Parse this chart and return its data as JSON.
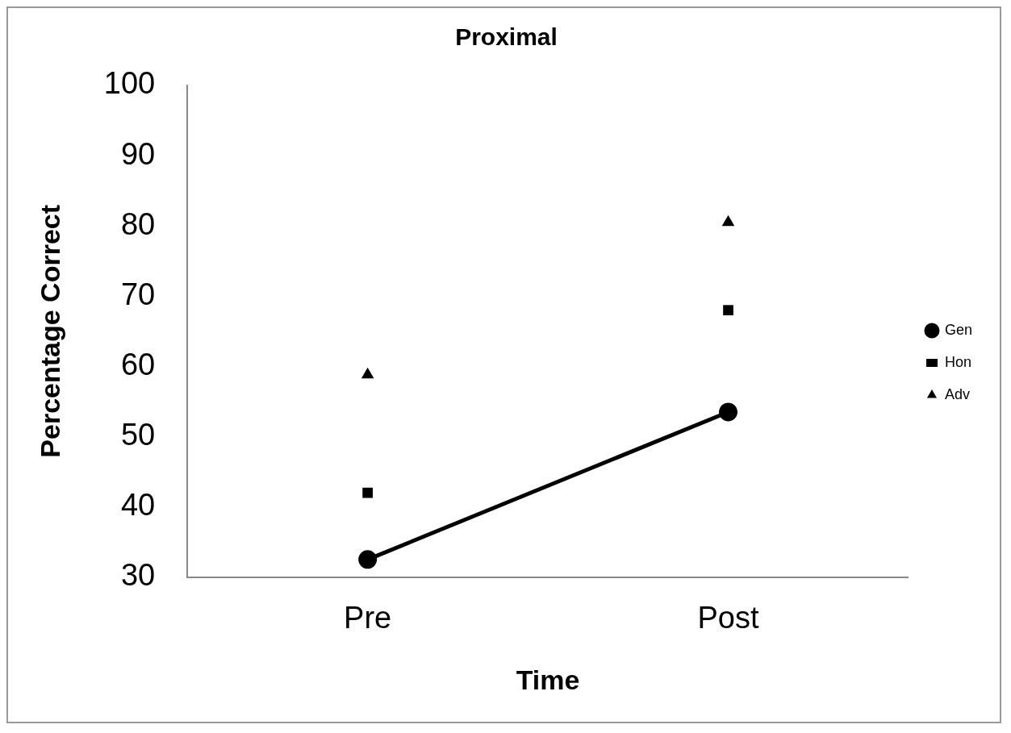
{
  "chart_data": {
    "type": "line",
    "title": "Proximal",
    "xlabel": "Time",
    "ylabel": "Percentage Correct",
    "categories": [
      "Pre",
      "Post"
    ],
    "series": [
      {
        "name": "Gen",
        "type": "line",
        "color": "#000000",
        "marker": "circle",
        "values": [
          32.5,
          53.5
        ]
      },
      {
        "name": "Hon",
        "type": "scatter",
        "color": "#000000",
        "marker": "square",
        "values": [
          42,
          68
        ]
      },
      {
        "name": "Adv",
        "type": "scatter",
        "color": "#000000",
        "marker": "triangle",
        "values": [
          58.8,
          80.5
        ]
      }
    ],
    "ylim": [
      30,
      100
    ],
    "yticks": [
      30,
      40,
      50,
      60,
      70,
      80,
      90,
      100
    ],
    "grid": false,
    "legend": "right"
  }
}
